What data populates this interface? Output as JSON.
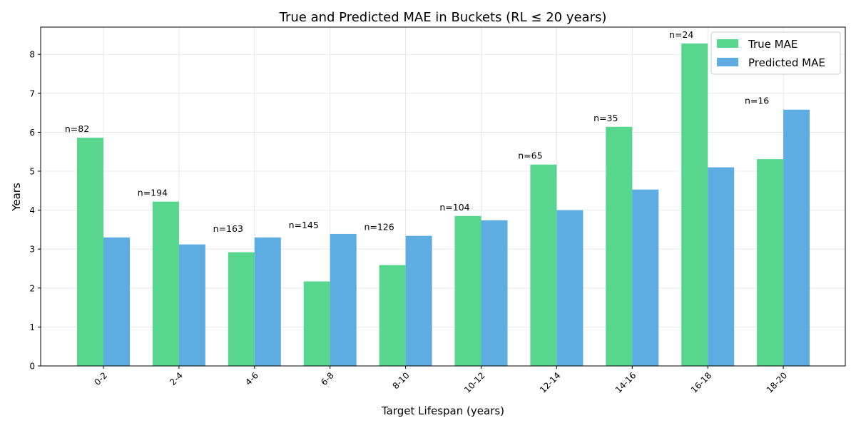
{
  "chart_data": {
    "type": "bar",
    "title": "True and Predicted MAE in Buckets (RL ≤ 20 years)",
    "xlabel": "Target Lifespan (years)",
    "ylabel": "Years",
    "categories": [
      "0-2",
      "2-4",
      "4-6",
      "6-8",
      "8-10",
      "10-12",
      "12-14",
      "14-16",
      "16-18",
      "18-20"
    ],
    "counts": [
      "n=82",
      "n=194",
      "n=163",
      "n=145",
      "n=126",
      "n=104",
      "n=65",
      "n=35",
      "n=24",
      "n=16"
    ],
    "series": [
      {
        "name": "True MAE",
        "color": "#58d68d",
        "values": [
          5.86,
          4.22,
          2.92,
          2.17,
          2.59,
          3.85,
          5.17,
          6.14,
          8.28,
          5.31
        ]
      },
      {
        "name": "Predicted MAE",
        "color": "#5dade2",
        "values": [
          3.3,
          3.12,
          3.3,
          3.39,
          3.34,
          3.74,
          4.0,
          4.53,
          5.1,
          6.58
        ]
      }
    ],
    "yticks": [
      0,
      1,
      2,
      3,
      4,
      5,
      6,
      7,
      8
    ],
    "ylim": [
      0,
      8.7
    ],
    "grid": true,
    "legend_position": "top-right"
  }
}
